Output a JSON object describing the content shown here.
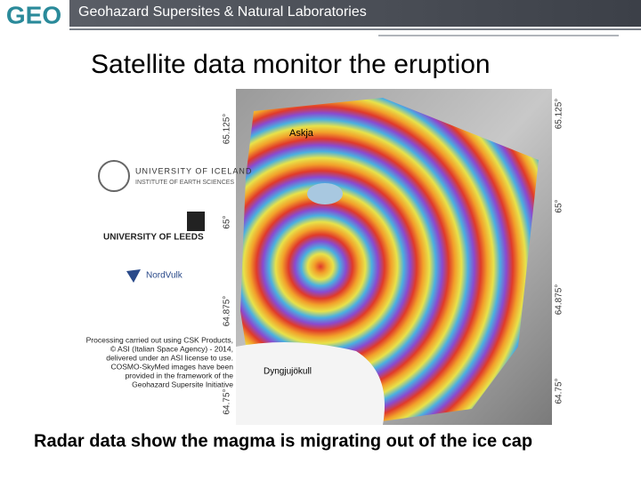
{
  "header": {
    "logo": "GEO",
    "title": "Geohazard Supersites & Natural Laboratories"
  },
  "slide": {
    "title": "Satellite data monitor the eruption",
    "caption": "Radar data show the magma is migrating out of the ice cap"
  },
  "figure": {
    "lat_labels": [
      "65.125°",
      "65°",
      "64.875°",
      "64.75°"
    ],
    "place_labels": [
      "Askja",
      "Dyngjujökull"
    ],
    "logos": {
      "iceland": "UNIVERSITY OF ICELAND",
      "iceland_sub": "INSTITUTE OF EARTH SCIENCES",
      "leeds": "UNIVERSITY OF LEEDS",
      "nordvulk": "NordVulk"
    },
    "credits": [
      "Processing carried out using CSK Products,",
      "© ASI (Italian Space Agency) - 2014,",
      "delivered under an ASI license to use.",
      "COSMO-SkyMed images have been",
      "provided in the framework of the",
      "Geohazard Supersite Initiative"
    ]
  }
}
